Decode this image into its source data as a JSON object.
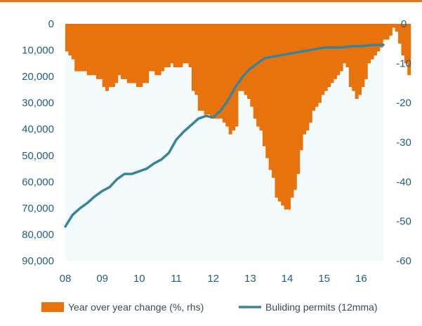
{
  "colors": {
    "top_rule": "#e8741a",
    "plot_background": "#f3fafb",
    "bar_fill": "#e8730c",
    "line_stroke": "#3a8497",
    "tick_text": "#1f5f7a",
    "legend_text": "#3a4a55"
  },
  "chart_data": {
    "type": "bar",
    "title": "",
    "legend_position": "bottom",
    "grid": false,
    "x_ticks": [
      "08",
      "09",
      "10",
      "11",
      "12",
      "13",
      "14",
      "15",
      "16"
    ],
    "x_range": [
      2008.0,
      2016.6
    ],
    "left_axis": {
      "inverted": true,
      "range": [
        0,
        90000
      ],
      "ticks": [
        "0",
        "10,000",
        "20,000",
        "30,000",
        "40,000",
        "50,000",
        "60,000",
        "70,000",
        "80,000",
        "90,000"
      ],
      "tick_values": [
        0,
        10000,
        20000,
        30000,
        40000,
        50000,
        60000,
        70000,
        80000,
        90000
      ]
    },
    "right_axis": {
      "range": [
        -60,
        0
      ],
      "ticks": [
        "0",
        "-10",
        "-20",
        "-30",
        "-40",
        "-50",
        "-60"
      ],
      "tick_values": [
        0,
        -10,
        -20,
        -30,
        -40,
        -50,
        -60
      ]
    },
    "series": [
      {
        "name": "Year over year change (%, rhs)",
        "type": "bar",
        "axis": "right",
        "x_start": 2008.0,
        "x_step": 0.08333,
        "values": [
          -7,
          -8,
          -9,
          -12,
          -12,
          -12,
          -12,
          -13,
          -13,
          -13,
          -14,
          -14,
          -16,
          -17,
          -16,
          -16,
          -15,
          -13,
          -14,
          -14,
          -15,
          -15,
          -15,
          -16,
          -16,
          -15,
          -15,
          -12,
          -12,
          -13,
          -13,
          -12,
          -11,
          -11,
          -10,
          -11,
          -11,
          -11,
          -10,
          -10,
          -11,
          -17,
          -18,
          -22,
          -22,
          -23,
          -23,
          -24,
          -24,
          -24,
          -24,
          -25,
          -26,
          -28,
          -27,
          -26,
          -17,
          -17,
          -18,
          -19,
          -21,
          -24,
          -26,
          -27,
          -31,
          -34,
          -37,
          -39,
          -44,
          -45,
          -46,
          -47,
          -47,
          -44,
          -42,
          -38,
          -32,
          -28,
          -27,
          -25,
          -22,
          -21,
          -20,
          -18,
          -17,
          -16,
          -15,
          -14,
          -13,
          -12,
          -10,
          -11,
          -16,
          -17,
          -19,
          -18,
          -16,
          -14,
          -10,
          -9,
          -8,
          -7,
          -6,
          -4,
          -4,
          -3,
          -1,
          -2,
          -5,
          -8,
          -10,
          -13
        ]
      },
      {
        "name": "Buliding permits (12mma)",
        "type": "line",
        "axis": "left",
        "points": [
          [
            2008.0,
            77000
          ],
          [
            2008.2,
            72500
          ],
          [
            2008.4,
            70000
          ],
          [
            2008.6,
            68000
          ],
          [
            2008.8,
            65500
          ],
          [
            2009.0,
            63500
          ],
          [
            2009.2,
            62000
          ],
          [
            2009.4,
            59000
          ],
          [
            2009.6,
            57000
          ],
          [
            2009.8,
            57000
          ],
          [
            2010.0,
            56000
          ],
          [
            2010.2,
            55000
          ],
          [
            2010.4,
            53000
          ],
          [
            2010.6,
            51500
          ],
          [
            2010.8,
            49000
          ],
          [
            2011.0,
            44000
          ],
          [
            2011.2,
            41000
          ],
          [
            2011.4,
            38500
          ],
          [
            2011.6,
            36000
          ],
          [
            2011.8,
            35000
          ],
          [
            2012.0,
            35500
          ],
          [
            2012.2,
            33000
          ],
          [
            2012.4,
            29000
          ],
          [
            2012.6,
            24000
          ],
          [
            2012.8,
            20000
          ],
          [
            2013.0,
            17000
          ],
          [
            2013.2,
            15000
          ],
          [
            2013.4,
            13000
          ],
          [
            2013.6,
            12500
          ],
          [
            2013.8,
            12000
          ],
          [
            2014.0,
            11500
          ],
          [
            2014.2,
            11000
          ],
          [
            2014.4,
            10500
          ],
          [
            2014.6,
            10000
          ],
          [
            2014.8,
            9500
          ],
          [
            2015.0,
            9000
          ],
          [
            2015.2,
            9000
          ],
          [
            2015.4,
            9000
          ],
          [
            2015.6,
            8800
          ],
          [
            2015.8,
            8500
          ],
          [
            2016.0,
            8500
          ],
          [
            2016.2,
            8200
          ],
          [
            2016.4,
            8000
          ],
          [
            2016.6,
            8000
          ]
        ]
      }
    ]
  },
  "legend": {
    "bars_label": "Year over year change (%, rhs)",
    "line_label": "Buliding permits (12mma)"
  }
}
